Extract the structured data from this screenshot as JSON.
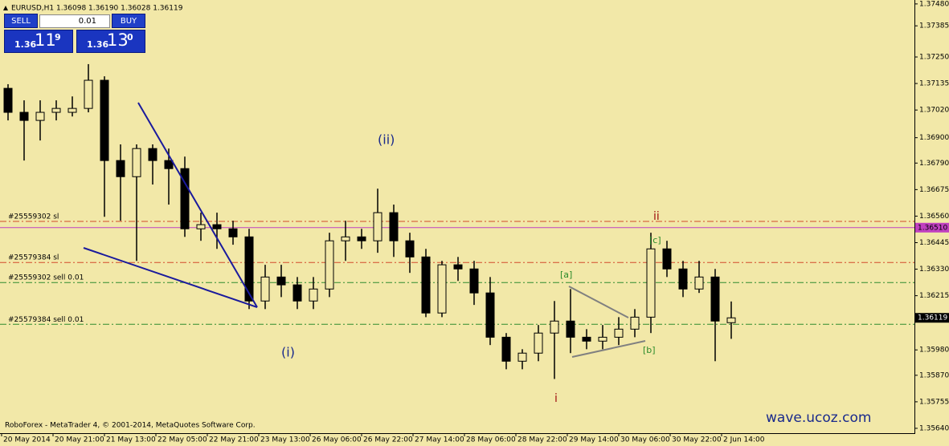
{
  "header": {
    "symbol_info": "EURUSD,H1  1.36098 1.36190 1.36028 1.36119"
  },
  "trade_panel": {
    "sell": "SELL",
    "buy": "BUY",
    "lot": "0.01",
    "bid": {
      "prefix": "1.36",
      "big": "11",
      "sup": "9"
    },
    "ask": {
      "prefix": "1.36",
      "big": "13",
      "sup": "0"
    }
  },
  "annotations": [
    "(ii)",
    "(i)",
    "ii",
    "i",
    "[a]",
    "[b]",
    "[c]"
  ],
  "footer": {
    "copyright": "RoboForex - MetaTrader 4, © 2001-2014, MetaQuotes Software Corp.",
    "watermark": "wave.ucoz.com"
  },
  "chart_data": {
    "type": "candlestick",
    "categories": [
      "20 May 2014",
      "20 May 21:00",
      "21 May 13:00",
      "22 May 05:00",
      "22 May 21:00",
      "23 May 13:00",
      "26 May 06:00",
      "26 May 22:00",
      "27 May 14:00",
      "28 May 06:00",
      "28 May 22:00",
      "29 May 14:00",
      "30 May 06:00",
      "30 May 22:00",
      "2 Jun 14:00"
    ],
    "open": [
      1.37114,
      1.3701,
      1.36975,
      1.3701,
      1.3701,
      1.37027,
      1.37149,
      1.36801,
      1.36731,
      1.36853,
      1.36801,
      1.36766,
      1.36505,
      1.36523,
      1.36505,
      1.3647,
      1.36192,
      1.36296,
      1.36262,
      1.36192,
      1.36244,
      1.36453,
      1.3647,
      1.36453,
      1.36575,
      1.36453,
      1.36383,
      1.3614,
      1.36349,
      1.36331,
      1.36227,
      1.36035,
      1.35931,
      1.35966,
      1.36053,
      1.36105,
      1.36035,
      1.36018,
      1.36035,
      1.3607,
      1.36122,
      1.36418,
      1.36331,
      1.36244,
      1.36296,
      1.36098
    ],
    "high": [
      1.37132,
      1.37062,
      1.37062,
      1.37062,
      1.37079,
      1.37219,
      1.37166,
      1.36871,
      1.36871,
      1.36871,
      1.36853,
      1.36818,
      1.36575,
      1.36575,
      1.3654,
      1.36505,
      1.36349,
      1.36349,
      1.36296,
      1.36296,
      1.36488,
      1.3654,
      1.36505,
      1.36679,
      1.3661,
      1.36488,
      1.36418,
      1.36366,
      1.36383,
      1.36366,
      1.36296,
      1.36053,
      1.35983,
      1.36088,
      1.36192,
      1.36244,
      1.3607,
      1.36088,
      1.36122,
      1.36157,
      1.36488,
      1.36453,
      1.36366,
      1.36366,
      1.36331,
      1.3619
    ],
    "low": [
      1.36975,
      1.36801,
      1.36888,
      1.36975,
      1.36992,
      1.3701,
      1.36557,
      1.3654,
      1.36366,
      1.36697,
      1.3661,
      1.3647,
      1.36453,
      1.36418,
      1.36436,
      1.36157,
      1.36157,
      1.36209,
      1.36157,
      1.36157,
      1.36209,
      1.36366,
      1.36418,
      1.36401,
      1.36383,
      1.36314,
      1.36122,
      1.36122,
      1.36279,
      1.36175,
      1.36001,
      1.35896,
      1.35896,
      1.35931,
      1.35854,
      1.35966,
      1.35983,
      1.35983,
      1.36001,
      1.36035,
      1.36053,
      1.36296,
      1.36209,
      1.36227,
      1.35931,
      1.36028
    ],
    "close": [
      1.3701,
      1.36975,
      1.3701,
      1.37027,
      1.37027,
      1.37149,
      1.36801,
      1.36731,
      1.36853,
      1.36801,
      1.36766,
      1.36505,
      1.36523,
      1.36505,
      1.3647,
      1.36192,
      1.36296,
      1.36262,
      1.36192,
      1.36244,
      1.36453,
      1.3647,
      1.36453,
      1.36575,
      1.36453,
      1.36383,
      1.3614,
      1.36349,
      1.36331,
      1.36227,
      1.36035,
      1.35931,
      1.35966,
      1.36053,
      1.36105,
      1.36035,
      1.36018,
      1.36035,
      1.3607,
      1.36122,
      1.36418,
      1.36331,
      1.36244,
      1.36296,
      1.36105,
      1.36119
    ],
    "ylim": [
      1.35619,
      1.37497
    ],
    "yticks": [
      {
        "value": 1.3748,
        "label": "1.37480"
      },
      {
        "value": 1.37385,
        "label": "1.37385"
      },
      {
        "value": 1.3725,
        "label": "1.37250"
      },
      {
        "value": 1.37135,
        "label": "1.37135"
      },
      {
        "value": 1.3702,
        "label": "1.37020"
      },
      {
        "value": 1.369,
        "label": "1.36900"
      },
      {
        "value": 1.3679,
        "label": "1.36790"
      },
      {
        "value": 1.36675,
        "label": "1.36675"
      },
      {
        "value": 1.3656,
        "label": "1.36560"
      },
      {
        "value": 1.36445,
        "label": "1.36445"
      },
      {
        "value": 1.3633,
        "label": "1.36330"
      },
      {
        "value": 1.36215,
        "label": "1.36215"
      },
      {
        "value": 1.3598,
        "label": "1.35980"
      },
      {
        "value": 1.3587,
        "label": "1.35870"
      },
      {
        "value": 1.35755,
        "label": "1.35755"
      },
      {
        "value": 1.3564,
        "label": "1.35640"
      }
    ],
    "levels": [
      {
        "name": "#25559302 sl",
        "value": 1.36537,
        "color": "#d24a2a"
      },
      {
        "price_label": {
          "value": 1.3651,
          "label": "1.36510"
        },
        "color": "#c040c0"
      },
      {
        "name": "#25579384 sl",
        "value": 1.36359,
        "color": "#d24a2a"
      },
      {
        "name": "#25559302 sell 0.01",
        "value": 1.36272,
        "color": "#2e8b2e"
      },
      {
        "name": "#25579384 sell 0.01",
        "value": 1.36091,
        "color": "#2e8b2e"
      }
    ],
    "bid_label": 1.36119,
    "up_color": "#f2e8a8",
    "down_color": "#000000"
  }
}
